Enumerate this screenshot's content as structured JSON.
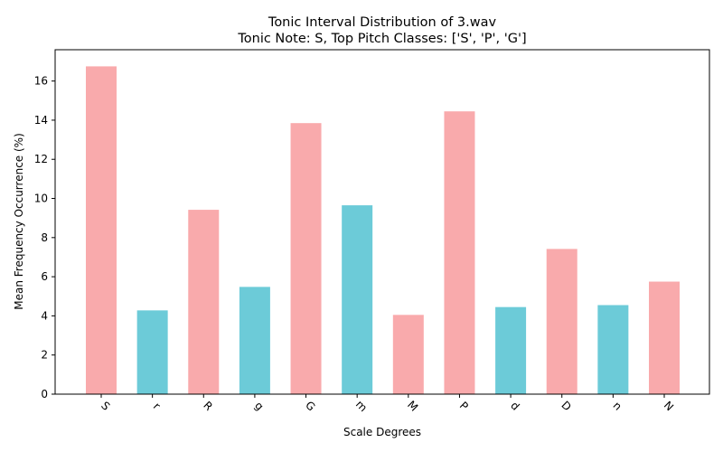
{
  "colors": {
    "pink": "#f9aaac",
    "cyan": "#6ccbd8",
    "axis": "#000000",
    "background": "#ffffff"
  },
  "chart_data": {
    "type": "bar",
    "title": "Tonic Interval Distribution of 3.wav",
    "subtitle": "Tonic Note: S, Top Pitch Classes: ['S', 'P', 'G']",
    "xlabel": "Scale Degrees",
    "ylabel": "Mean Frequency Occurrence (%)",
    "categories": [
      "S",
      "r",
      "R",
      "g",
      "G",
      "m",
      "M",
      "P",
      "d",
      "D",
      "n",
      "N"
    ],
    "values": [
      16.75,
      4.28,
      9.42,
      5.48,
      13.85,
      9.65,
      4.05,
      14.45,
      4.45,
      7.42,
      4.55,
      5.75
    ],
    "bar_colors": [
      "pink",
      "cyan",
      "pink",
      "cyan",
      "pink",
      "cyan",
      "pink",
      "pink",
      "cyan",
      "pink",
      "cyan",
      "pink"
    ],
    "ylim": [
      0,
      17.6
    ],
    "yticks": [
      0,
      2,
      4,
      6,
      8,
      10,
      12,
      14,
      16
    ],
    "grid": false,
    "legend": "none",
    "xtick_rotation": 45
  }
}
